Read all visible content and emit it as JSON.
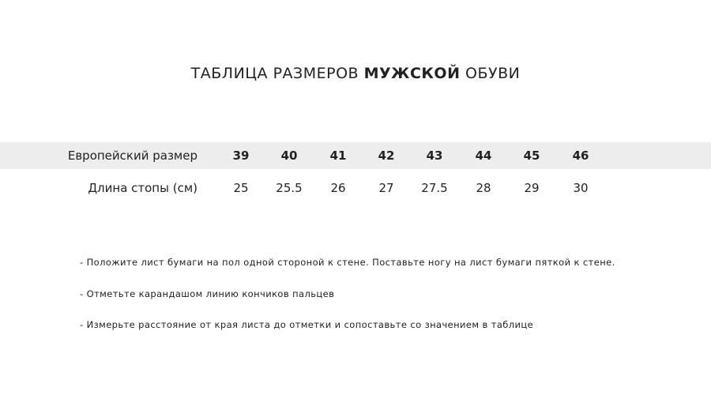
{
  "title": {
    "before": "ТАБЛИЦА РАЗМЕРОВ ",
    "bold": "МУЖСКОЙ",
    "after": " ОБУВИ"
  },
  "table": {
    "rows": [
      {
        "label": "Европейский размер",
        "values": [
          "39",
          "40",
          "41",
          "42",
          "43",
          "44",
          "45",
          "46"
        ]
      },
      {
        "label": "Длина стопы (см)",
        "values": [
          "25",
          "25.5",
          "26",
          "27",
          "27.5",
          "28",
          "29",
          "30"
        ]
      }
    ]
  },
  "notes": [
    "- Положите лист бумаги на пол одной стороной к стене. Поставьте ногу на лист бумаги пяткой к стене.",
    "- Отметьте карандашом линию кончиков пальцев",
    "- Измерьте расстояние от края листа до отметки и сопоставьте со значением в таблице"
  ]
}
